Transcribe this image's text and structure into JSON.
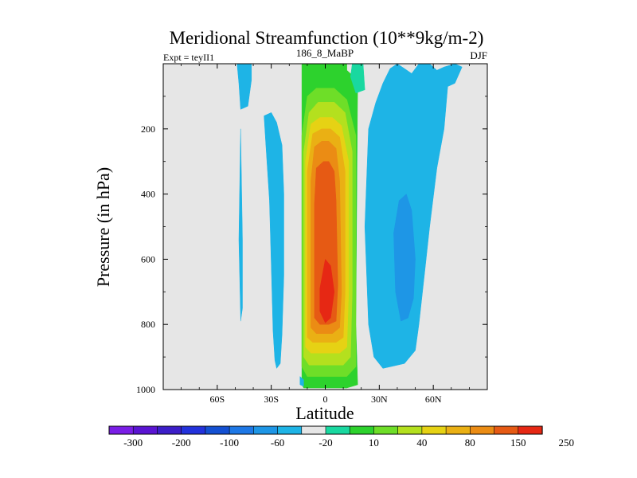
{
  "chart_data": {
    "type": "contour",
    "title": "Meridional Streamfunction (10**9kg/m-2)",
    "left_label": "Expt = teyII1",
    "center_label": "186_8_MaBP",
    "right_label": "DJF",
    "xlabel": "Latitude",
    "ylabel": "Pressure (in hPa)",
    "xlim": [
      -90,
      90
    ],
    "ylim": [
      1000,
      0
    ],
    "x_ticks": [
      {
        "v": -60,
        "label": "60S"
      },
      {
        "v": -30,
        "label": "30S"
      },
      {
        "v": 0,
        "label": "0"
      },
      {
        "v": 30,
        "label": "30N"
      },
      {
        "v": 60,
        "label": "60N"
      }
    ],
    "y_ticks": [
      {
        "v": 200,
        "label": "200"
      },
      {
        "v": 400,
        "label": "400"
      },
      {
        "v": 600,
        "label": "600"
      },
      {
        "v": 800,
        "label": "800"
      },
      {
        "v": 1000,
        "label": "1000"
      }
    ],
    "background_color": "#e6e6e6",
    "colorbar": {
      "colors": [
        "#7a1ee6",
        "#5a14d2",
        "#3c1ec8",
        "#2332dc",
        "#1450d2",
        "#1e78e6",
        "#1e96e6",
        "#1eb4e6",
        "#e6e6e6",
        "#19d8a0",
        "#2dd22d",
        "#6ede28",
        "#b4e01e",
        "#e6d214",
        "#eab014",
        "#eb8c14",
        "#e65a14",
        "#e62814"
      ],
      "labels": [
        {
          "edge": 1,
          "label": "-300"
        },
        {
          "edge": 3,
          "label": "-200"
        },
        {
          "edge": 5,
          "label": "-100"
        },
        {
          "edge": 7,
          "label": "-60"
        },
        {
          "edge": 9,
          "label": "-20"
        },
        {
          "edge": 11,
          "label": "10"
        },
        {
          "edge": 13,
          "label": "40"
        },
        {
          "edge": 15,
          "label": "80"
        },
        {
          "edge": 17,
          "label": "150"
        },
        {
          "edge": 19,
          "label": "250"
        }
      ]
    },
    "regions": [
      {
        "name": "positive-cell-band-1",
        "color": "#2dd22d",
        "points": [
          [
            -12,
            0
          ],
          [
            12,
            0
          ],
          [
            12,
            20
          ],
          [
            18,
            50
          ],
          [
            17,
            800
          ],
          [
            18,
            985
          ],
          [
            12,
            995
          ],
          [
            -12,
            995
          ],
          [
            -13,
            985
          ],
          [
            -13,
            0
          ]
        ]
      },
      {
        "name": "positive-cell-band-0",
        "color": "#19d8a0",
        "points": [
          [
            15,
            0
          ],
          [
            21,
            0
          ],
          [
            22,
            80
          ],
          [
            17,
            90
          ],
          [
            14,
            40
          ]
        ]
      },
      {
        "name": "positive-cell-band-2",
        "color": "#6ede28",
        "points": [
          [
            -10,
            100
          ],
          [
            -5,
            75
          ],
          [
            5,
            75
          ],
          [
            12,
            110
          ],
          [
            17,
            220
          ],
          [
            17,
            700
          ],
          [
            17,
            930
          ],
          [
            12,
            960
          ],
          [
            -10,
            960
          ],
          [
            -13,
            930
          ],
          [
            -13,
            700
          ],
          [
            -13,
            220
          ]
        ]
      },
      {
        "name": "positive-cell-band-3",
        "color": "#b4e01e",
        "points": [
          [
            -9,
            150
          ],
          [
            -4,
            118
          ],
          [
            5,
            118
          ],
          [
            11,
            150
          ],
          [
            15,
            270
          ],
          [
            15,
            700
          ],
          [
            14,
            900
          ],
          [
            10,
            925
          ],
          [
            -9,
            925
          ],
          [
            -12,
            900
          ],
          [
            -12,
            270
          ]
        ]
      },
      {
        "name": "positive-cell-band-4",
        "color": "#e6d214",
        "points": [
          [
            -8,
            185
          ],
          [
            -3,
            165
          ],
          [
            4,
            165
          ],
          [
            9,
            190
          ],
          [
            13,
            300
          ],
          [
            13,
            700
          ],
          [
            12,
            870
          ],
          [
            8,
            888
          ],
          [
            -8,
            888
          ],
          [
            -11,
            870
          ],
          [
            -11,
            300
          ]
        ]
      },
      {
        "name": "positive-cell-band-5",
        "color": "#eab014",
        "points": [
          [
            -7,
            215
          ],
          [
            -2,
            200
          ],
          [
            3,
            200
          ],
          [
            8,
            225
          ],
          [
            11,
            330
          ],
          [
            11,
            700
          ],
          [
            10,
            840
          ],
          [
            6,
            855
          ],
          [
            -7,
            855
          ],
          [
            -10,
            840
          ],
          [
            -10,
            330
          ]
        ]
      },
      {
        "name": "positive-cell-band-6",
        "color": "#eb8c14",
        "points": [
          [
            -6,
            255
          ],
          [
            -2,
            238
          ],
          [
            2,
            238
          ],
          [
            6,
            260
          ],
          [
            8,
            360
          ],
          [
            9,
            700
          ],
          [
            8,
            810
          ],
          [
            4,
            828
          ],
          [
            -5,
            828
          ],
          [
            -8,
            810
          ],
          [
            -8,
            360
          ]
        ]
      },
      {
        "name": "positive-cell-band-7",
        "color": "#e65a14",
        "points": [
          [
            -5,
            320
          ],
          [
            -1,
            300
          ],
          [
            2,
            300
          ],
          [
            5,
            330
          ],
          [
            6,
            420
          ],
          [
            7,
            680
          ],
          [
            6,
            790
          ],
          [
            2,
            800
          ],
          [
            -3,
            800
          ],
          [
            -6,
            780
          ],
          [
            -6,
            430
          ]
        ]
      },
      {
        "name": "positive-cell-core",
        "color": "#e62814",
        "points": [
          [
            -3,
            690
          ],
          [
            0,
            600
          ],
          [
            3,
            620
          ],
          [
            5,
            700
          ],
          [
            3,
            780
          ],
          [
            0,
            795
          ],
          [
            -3,
            760
          ]
        ]
      },
      {
        "name": "north-negative-outer",
        "color": "#1eb4e6",
        "points": [
          [
            24,
            200
          ],
          [
            28,
            120
          ],
          [
            32,
            60
          ],
          [
            36,
            15
          ],
          [
            40,
            0
          ],
          [
            44,
            15
          ],
          [
            48,
            30
          ],
          [
            52,
            0
          ],
          [
            58,
            0
          ],
          [
            62,
            20
          ],
          [
            66,
            10
          ],
          [
            72,
            0
          ],
          [
            76,
            10
          ],
          [
            72,
            60
          ],
          [
            68,
            70
          ],
          [
            66,
            200
          ],
          [
            62,
            320
          ],
          [
            58,
            500
          ],
          [
            55,
            650
          ],
          [
            52,
            800
          ],
          [
            50,
            880
          ],
          [
            44,
            920
          ],
          [
            36,
            930
          ],
          [
            32,
            935
          ],
          [
            27,
            900
          ],
          [
            24,
            800
          ],
          [
            22,
            500
          ]
        ]
      },
      {
        "name": "north-negative-inner",
        "color": "#1e96e6",
        "points": [
          [
            38,
            520
          ],
          [
            41,
            420
          ],
          [
            45,
            400
          ],
          [
            48,
            450
          ],
          [
            50,
            600
          ],
          [
            49,
            720
          ],
          [
            46,
            780
          ],
          [
            42,
            790
          ],
          [
            39,
            700
          ]
        ]
      },
      {
        "name": "south-negative-strip-upper",
        "color": "#1eb4e6",
        "points": [
          [
            -49,
            0
          ],
          [
            -41,
            0
          ],
          [
            -41,
            50
          ],
          [
            -43,
            130
          ],
          [
            -47,
            140
          ],
          [
            -48,
            60
          ]
        ]
      },
      {
        "name": "south-negative-strip-lower",
        "color": "#1eb4e6",
        "points": [
          [
            -47,
            200
          ],
          [
            -46,
            540
          ],
          [
            -46,
            750
          ],
          [
            -47,
            790
          ],
          [
            -47,
            780
          ],
          [
            -48,
            540
          ]
        ]
      },
      {
        "name": "south-negative-cell",
        "color": "#1eb4e6",
        "points": [
          [
            -34,
            160
          ],
          [
            -30,
            150
          ],
          [
            -27,
            180
          ],
          [
            -24,
            250
          ],
          [
            -23,
            400
          ],
          [
            -23,
            650
          ],
          [
            -24,
            830
          ],
          [
            -25,
            920
          ],
          [
            -27,
            935
          ],
          [
            -28,
            910
          ],
          [
            -29,
            820
          ],
          [
            -30,
            620
          ],
          [
            -31,
            420
          ],
          [
            -33,
            250
          ]
        ]
      },
      {
        "name": "surface-negative-patch",
        "color": "#1eb4e6",
        "points": [
          [
            -14,
            960
          ],
          [
            -12,
            970
          ],
          [
            -12,
            990
          ],
          [
            -14,
            985
          ]
        ]
      }
    ]
  }
}
